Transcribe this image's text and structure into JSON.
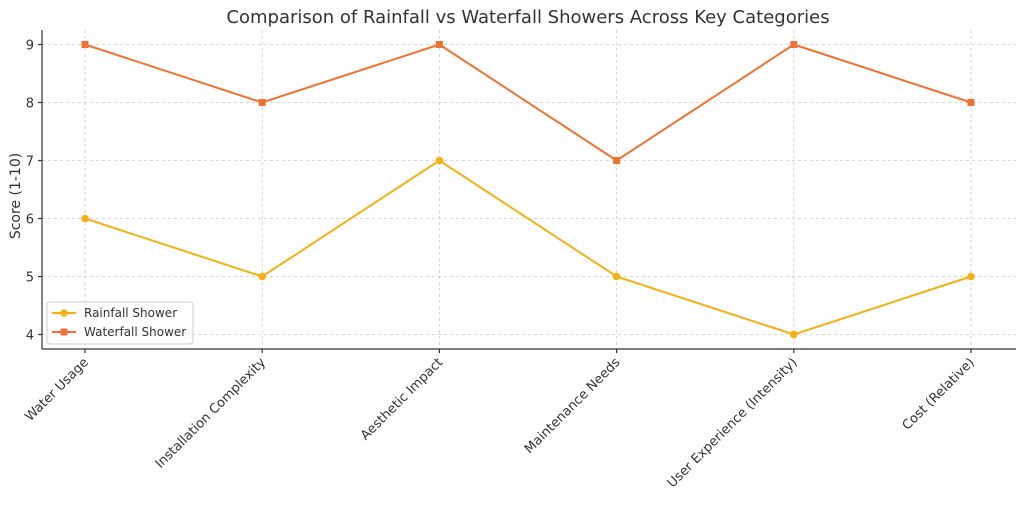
{
  "chart_data": {
    "type": "line",
    "title": "Comparison of Rainfall vs Waterfall Showers Across Key Categories",
    "xlabel": "",
    "ylabel": "Score (1-10)",
    "categories": [
      "Water Usage",
      "Installation Complexity",
      "Aesthetic Impact",
      "Maintenance Needs",
      "User Experience (Intensity)",
      "Cost (Relative)"
    ],
    "series": [
      {
        "name": "Rainfall Shower",
        "values": [
          6,
          5,
          7,
          5,
          4,
          5
        ],
        "color": "#f5b014",
        "marker": "circle"
      },
      {
        "name": "Waterfall Shower",
        "values": [
          9,
          8,
          9,
          7,
          9,
          8
        ],
        "color": "#ef7230",
        "marker": "square"
      }
    ],
    "ylim": [
      3.75,
      9.25
    ],
    "yticks": [
      4,
      5,
      6,
      7,
      8,
      9
    ],
    "grid": true,
    "legend_position": "lower-left"
  }
}
